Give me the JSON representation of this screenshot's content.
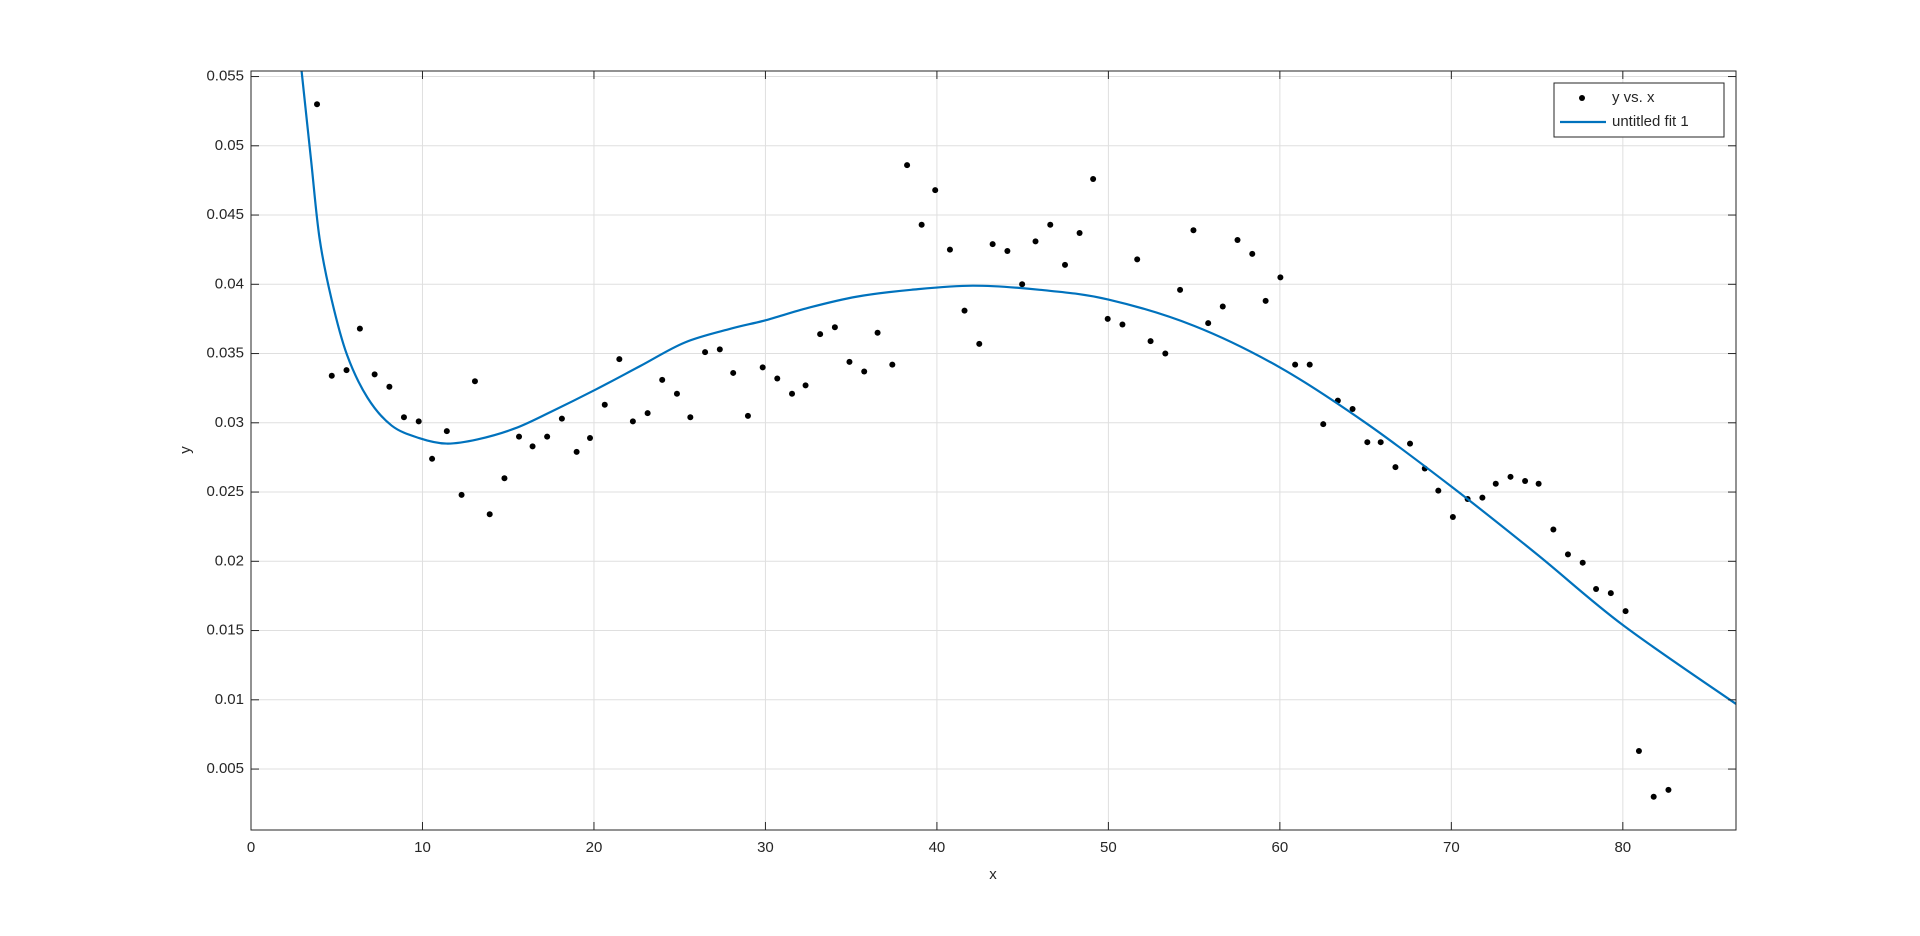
{
  "chart_data": {
    "type": "scatter",
    "xlabel": "x",
    "ylabel": "y",
    "xlim": [
      0,
      86.6
    ],
    "ylim": [
      0.0006,
      0.0554
    ],
    "xticks": [
      0,
      10,
      20,
      30,
      40,
      50,
      60,
      70,
      80
    ],
    "yticks": [
      0.005,
      0.01,
      0.015,
      0.02,
      0.025,
      0.03,
      0.035,
      0.04,
      0.045,
      0.05,
      0.055
    ],
    "grid": true,
    "legend": "upper-right",
    "series": [
      {
        "name": "y vs. x",
        "type": "scatter",
        "color": "#000000",
        "x": [
          3.85,
          4.71,
          5.57,
          6.35,
          7.21,
          8.07,
          8.92,
          9.78,
          10.56,
          11.42,
          12.28,
          13.06,
          13.92,
          14.78,
          15.63,
          16.42,
          17.27,
          18.13,
          18.99,
          19.77,
          20.63,
          21.48,
          22.27,
          23.13,
          23.98,
          24.84,
          25.62,
          26.48,
          27.34,
          28.12,
          28.98,
          29.84,
          30.69,
          31.55,
          32.34,
          33.19,
          34.05,
          34.9,
          35.76,
          36.54,
          37.4,
          38.26,
          39.11,
          39.9,
          40.76,
          41.61,
          42.47,
          43.25,
          44.11,
          44.97,
          45.75,
          46.61,
          47.47,
          48.32,
          49.11,
          49.96,
          50.82,
          51.68,
          52.46,
          53.32,
          54.18,
          54.96,
          55.82,
          56.67,
          57.53,
          58.39,
          59.17,
          60.03,
          60.89,
          61.74,
          62.53,
          63.38,
          64.24,
          65.1,
          65.88,
          66.74,
          67.59,
          68.45,
          69.24,
          70.09,
          70.95,
          71.81,
          72.59,
          73.45,
          74.3,
          75.09,
          75.95,
          76.8,
          77.66,
          78.44,
          79.3,
          80.16,
          80.94,
          81.8,
          82.66
        ],
        "values": [
          0.053,
          0.0334,
          0.0338,
          0.0368,
          0.0335,
          0.0326,
          0.0304,
          0.0301,
          0.0274,
          0.0294,
          0.0248,
          0.033,
          0.0234,
          0.026,
          0.029,
          0.0283,
          0.029,
          0.0303,
          0.0279,
          0.0289,
          0.0313,
          0.0346,
          0.0301,
          0.0307,
          0.0331,
          0.0321,
          0.0304,
          0.0351,
          0.0353,
          0.0336,
          0.0305,
          0.034,
          0.0332,
          0.0321,
          0.0327,
          0.0364,
          0.0369,
          0.0344,
          0.0337,
          0.0365,
          0.0342,
          0.0486,
          0.0443,
          0.0468,
          0.0425,
          0.0381,
          0.0357,
          0.0429,
          0.0424,
          0.04,
          0.0431,
          0.0443,
          0.0414,
          0.0437,
          0.0476,
          0.0375,
          0.0371,
          0.0418,
          0.0359,
          0.035,
          0.0396,
          0.0439,
          0.0372,
          0.0384,
          0.0432,
          0.0422,
          0.0388,
          0.0405,
          0.0342,
          0.0342,
          0.0299,
          0.0316,
          0.031,
          0.0286,
          0.0286,
          0.0268,
          0.0285,
          0.0267,
          0.0251,
          0.0232,
          0.0245,
          0.0246,
          0.0256,
          0.0261,
          0.0258,
          0.0256,
          0.0223,
          0.0205,
          0.0199,
          0.018,
          0.0177,
          0.0164,
          0.0063,
          0.003,
          0.0035
        ]
      },
      {
        "name": "untitled fit 1",
        "type": "line",
        "color": "#0072bd",
        "x": [
          2.95,
          3.5,
          4,
          4.7,
          5.6,
          6.8,
          8.2,
          9.8,
          11.4,
          13.2,
          15.4,
          17.5,
          20.1,
          22.7,
          25.3,
          28,
          30,
          32.5,
          35.3,
          38.5,
          42.1,
          46,
          50,
          55,
          60,
          65,
          70,
          75,
          80,
          86.6
        ],
        "values": [
          0.0554,
          0.049,
          0.0433,
          0.0389,
          0.0349,
          0.0318,
          0.0298,
          0.0289,
          0.0285,
          0.0288,
          0.0296,
          0.0308,
          0.0324,
          0.0341,
          0.0358,
          0.0368,
          0.0374,
          0.0383,
          0.0391,
          0.0396,
          0.0399,
          0.0396,
          0.0389,
          0.037,
          0.034,
          0.03,
          0.0254,
          0.0205,
          0.0154,
          0.0097
        ]
      }
    ]
  }
}
